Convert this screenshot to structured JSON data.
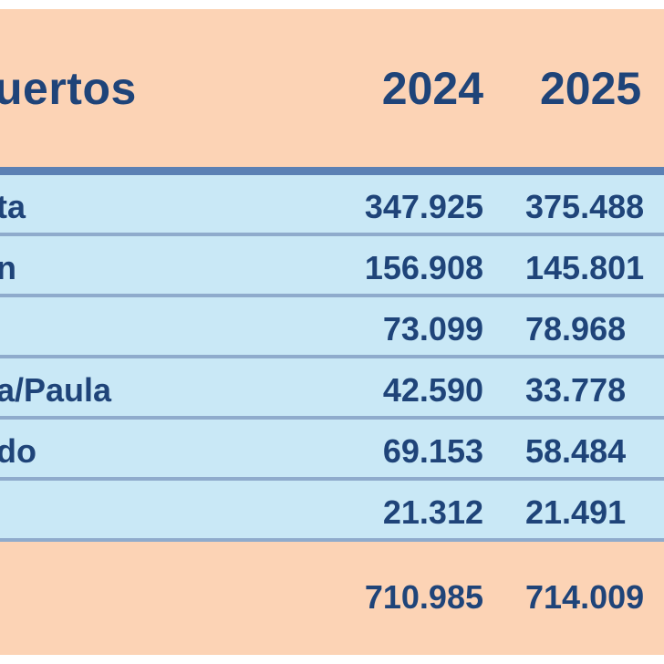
{
  "header": {
    "label": "uertos",
    "col_2024": "2024",
    "col_2025": "2025"
  },
  "rows": [
    {
      "label": "ta",
      "v2024": "347.925",
      "v2025": "375.488"
    },
    {
      "label": "n",
      "v2024": "156.908",
      "v2025": "145.801"
    },
    {
      "label": "",
      "v2024": "73.099",
      "v2025": "78.968"
    },
    {
      "label": "a/Paula",
      "v2024": "42.590",
      "v2025": "33.778"
    },
    {
      "label": "do",
      "v2024": "69.153",
      "v2025": "58.484"
    },
    {
      "label": "",
      "v2024": "21.312",
      "v2025": "21.491"
    }
  ],
  "footer": {
    "label": "",
    "total_2024": "710.985",
    "total_2025": "714.009"
  },
  "colors": {
    "header_bg": "#fcd3b5",
    "row_bg": "#c9e8f6",
    "rule": "#5b80b4",
    "divider": "#8fabcc",
    "text": "#1f4479"
  }
}
